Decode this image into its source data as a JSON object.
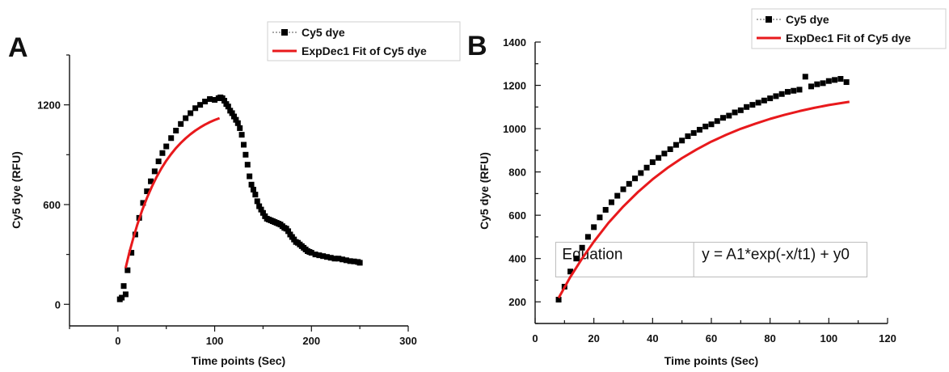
{
  "chart_data": [
    {
      "type": "scatter",
      "panel_label": "A",
      "xlabel": "Time points (Sec)",
      "ylabel": "Cy5 dye (RFU)",
      "xlim": [
        -50,
        300
      ],
      "ylim": [
        -130,
        1500
      ],
      "xticks": [
        0,
        100,
        200,
        300
      ],
      "yticks": [
        0,
        600,
        1200
      ],
      "grid": false,
      "legend_position": "top-right",
      "series": [
        {
          "name": "Cy5 dye",
          "kind": "scatter",
          "marker": "square",
          "color": "#000000",
          "x": [
            2,
            4,
            6,
            8,
            10,
            14,
            18,
            22,
            26,
            30,
            34,
            38,
            42,
            46,
            50,
            55,
            60,
            65,
            70,
            75,
            80,
            85,
            90,
            95,
            100,
            104,
            106,
            108,
            110,
            112,
            114,
            116,
            118,
            120,
            122,
            124,
            126,
            128,
            130,
            132,
            134,
            136,
            138,
            140,
            142,
            144,
            146,
            148,
            150,
            152,
            154,
            156,
            158,
            160,
            162,
            164,
            166,
            168,
            170,
            172,
            174,
            176,
            178,
            180,
            182,
            184,
            186,
            188,
            190,
            192,
            194,
            196,
            198,
            200,
            204,
            208,
            212,
            216,
            220,
            224,
            228,
            232,
            236,
            240,
            244,
            248,
            250
          ],
          "y": [
            30,
            40,
            110,
            60,
            205,
            310,
            420,
            520,
            610,
            680,
            740,
            800,
            860,
            910,
            950,
            1000,
            1045,
            1085,
            1120,
            1150,
            1180,
            1200,
            1220,
            1235,
            1230,
            1240,
            1245,
            1240,
            1225,
            1205,
            1190,
            1165,
            1150,
            1130,
            1110,
            1090,
            1060,
            1020,
            960,
            900,
            840,
            770,
            720,
            690,
            660,
            620,
            590,
            570,
            550,
            530,
            515,
            510,
            505,
            500,
            495,
            490,
            485,
            480,
            470,
            460,
            455,
            440,
            420,
            405,
            390,
            375,
            370,
            360,
            350,
            340,
            330,
            320,
            315,
            310,
            300,
            295,
            290,
            285,
            280,
            275,
            275,
            270,
            265,
            260,
            258,
            255,
            250
          ]
        },
        {
          "name": "ExpDec1 Fit of Cy5 dye",
          "kind": "line",
          "color": "#e8191c",
          "x": [
            8,
            12,
            16,
            20,
            25,
            30,
            35,
            40,
            45,
            50,
            55,
            60,
            65,
            70,
            75,
            80,
            85,
            90,
            95,
            100,
            105
          ],
          "y": [
            218,
            315,
            400,
            478,
            565,
            640,
            707,
            766,
            818,
            864,
            904,
            940,
            971,
            999,
            1023,
            1045,
            1064,
            1081,
            1096,
            1109,
            1120
          ]
        }
      ]
    },
    {
      "type": "scatter",
      "panel_label": "B",
      "xlabel": "Time points (Sec)",
      "ylabel": "Cy5 dye (RFU)",
      "xlim": [
        0,
        120
      ],
      "ylim": [
        100,
        1400
      ],
      "xticks": [
        0,
        20,
        40,
        60,
        80,
        100,
        120
      ],
      "yticks": [
        200,
        400,
        600,
        800,
        1000,
        1200,
        1400
      ],
      "grid": false,
      "legend_position": "top-right",
      "annotation": {
        "cells": [
          "Equation",
          "y = A1*exp(-x/t1) + y0"
        ],
        "position": "lower-right"
      },
      "series": [
        {
          "name": "Cy5 dye",
          "kind": "scatter",
          "marker": "square",
          "color": "#000000",
          "x": [
            8,
            10,
            12,
            14,
            16,
            18,
            20,
            22,
            24,
            26,
            28,
            30,
            32,
            34,
            36,
            38,
            40,
            42,
            44,
            46,
            48,
            50,
            52,
            54,
            56,
            58,
            60,
            62,
            64,
            66,
            68,
            70,
            72,
            74,
            76,
            78,
            80,
            82,
            84,
            86,
            88,
            90,
            92,
            94,
            96,
            98,
            100,
            102,
            104,
            106
          ],
          "y": [
            210,
            270,
            340,
            400,
            450,
            500,
            545,
            590,
            625,
            660,
            690,
            720,
            745,
            770,
            795,
            820,
            845,
            865,
            885,
            905,
            925,
            945,
            965,
            980,
            995,
            1010,
            1020,
            1035,
            1050,
            1060,
            1075,
            1085,
            1100,
            1110,
            1120,
            1130,
            1140,
            1150,
            1160,
            1170,
            1175,
            1180,
            1240,
            1195,
            1205,
            1210,
            1220,
            1225,
            1230,
            1215
          ]
        },
        {
          "name": "ExpDec1 Fit of Cy5 dye",
          "kind": "line",
          "color": "#e8191c",
          "x": [
            8,
            12,
            16,
            20,
            25,
            30,
            35,
            40,
            45,
            50,
            55,
            60,
            65,
            70,
            75,
            80,
            85,
            90,
            95,
            100,
            105,
            107
          ],
          "y": [
            218,
            315,
            400,
            478,
            565,
            640,
            707,
            766,
            818,
            864,
            904,
            940,
            971,
            999,
            1023,
            1045,
            1064,
            1081,
            1096,
            1109,
            1120,
            1124
          ]
        }
      ]
    }
  ]
}
